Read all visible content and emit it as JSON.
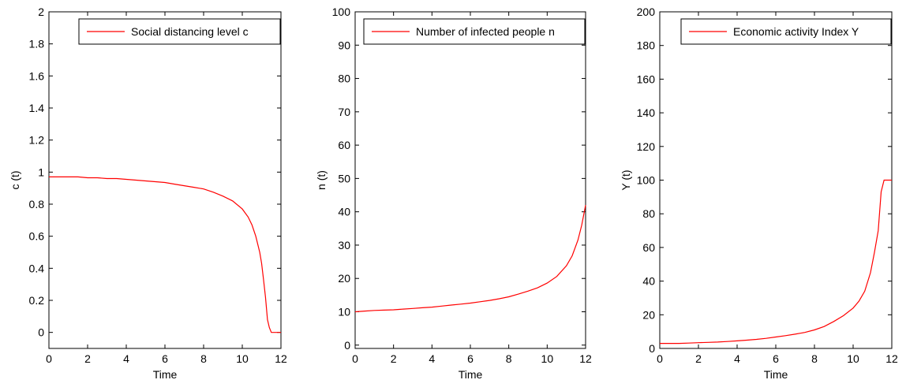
{
  "chart_data": [
    {
      "type": "line",
      "title": "",
      "xlabel": "Time",
      "ylabel": "c (t)",
      "xlim": [
        0,
        12
      ],
      "ylim": [
        -0.1,
        2
      ],
      "xticks": [
        "0",
        "2",
        "4",
        "6",
        "8",
        "10",
        "12"
      ],
      "yticks": [
        "0",
        "0.2",
        "0.4",
        "0.6",
        "0.8",
        "1",
        "1.2",
        "1.4",
        "1.6",
        "1.8",
        "2"
      ],
      "grid": false,
      "legend_position": "top-right",
      "line_color": "#ff0000",
      "series": [
        {
          "name": "Social distancing level c",
          "x": [
            0,
            0.5,
            1,
            1.5,
            2,
            2.5,
            3,
            3.5,
            4,
            4.5,
            5,
            5.5,
            6,
            6.5,
            7,
            7.5,
            8,
            8.5,
            9,
            9.5,
            10,
            10.3,
            10.5,
            10.7,
            10.9,
            11.0,
            11.1,
            11.2,
            11.3,
            11.4,
            11.5,
            11.7,
            12
          ],
          "y": [
            0.97,
            0.97,
            0.97,
            0.97,
            0.965,
            0.965,
            0.96,
            0.96,
            0.955,
            0.95,
            0.945,
            0.94,
            0.935,
            0.925,
            0.915,
            0.905,
            0.895,
            0.875,
            0.85,
            0.82,
            0.77,
            0.72,
            0.67,
            0.6,
            0.5,
            0.43,
            0.33,
            0.22,
            0.08,
            0.03,
            0.0,
            0.0,
            0.0
          ]
        }
      ]
    },
    {
      "type": "line",
      "title": "",
      "xlabel": "Time",
      "ylabel": "n (t)",
      "xlim": [
        0,
        12
      ],
      "ylim": [
        -1,
        100
      ],
      "xticks": [
        "0",
        "2",
        "4",
        "6",
        "8",
        "10",
        "12"
      ],
      "yticks": [
        "0",
        "10",
        "20",
        "30",
        "40",
        "50",
        "60",
        "70",
        "80",
        "90",
        "100"
      ],
      "grid": false,
      "legend_position": "top-right",
      "line_color": "#ff0000",
      "series": [
        {
          "name": "Number of infected people n",
          "x": [
            0,
            0.5,
            1,
            1.5,
            2,
            2.5,
            3,
            3.5,
            4,
            4.5,
            5,
            5.5,
            6,
            6.5,
            7,
            7.5,
            8,
            8.5,
            9,
            9.5,
            10,
            10.5,
            11,
            11.3,
            11.6,
            11.8,
            12
          ],
          "y": [
            10.0,
            10.2,
            10.4,
            10.5,
            10.6,
            10.8,
            11.0,
            11.2,
            11.4,
            11.7,
            12.0,
            12.3,
            12.6,
            13.0,
            13.4,
            13.9,
            14.5,
            15.3,
            16.2,
            17.2,
            18.6,
            20.6,
            23.8,
            26.8,
            31.5,
            36.0,
            42.0
          ]
        }
      ]
    },
    {
      "type": "line",
      "title": "",
      "xlabel": "Time",
      "ylabel": "Y (t)",
      "xlim": [
        0,
        12
      ],
      "ylim": [
        0,
        200
      ],
      "xticks": [
        "0",
        "2",
        "4",
        "6",
        "8",
        "10",
        "12"
      ],
      "yticks": [
        "0",
        "20",
        "40",
        "60",
        "80",
        "100",
        "120",
        "140",
        "160",
        "180",
        "200"
      ],
      "grid": false,
      "legend_position": "top-right",
      "line_color": "#ff0000",
      "series": [
        {
          "name": "Economic activity Index Y",
          "x": [
            0,
            0.5,
            1,
            1.5,
            2,
            2.5,
            3,
            3.5,
            4,
            4.5,
            5,
            5.5,
            6,
            6.5,
            7,
            7.5,
            8,
            8.5,
            9,
            9.5,
            10,
            10.3,
            10.6,
            10.9,
            11.1,
            11.3,
            11.45,
            11.6,
            11.8,
            12
          ],
          "y": [
            3,
            3,
            3,
            3.2,
            3.4,
            3.6,
            3.8,
            4.1,
            4.5,
            4.9,
            5.4,
            6.0,
            6.8,
            7.6,
            8.5,
            9.5,
            11,
            13,
            16,
            19.5,
            24,
            28,
            34,
            45,
            57,
            70,
            93,
            100,
            100,
            100
          ]
        }
      ]
    }
  ]
}
